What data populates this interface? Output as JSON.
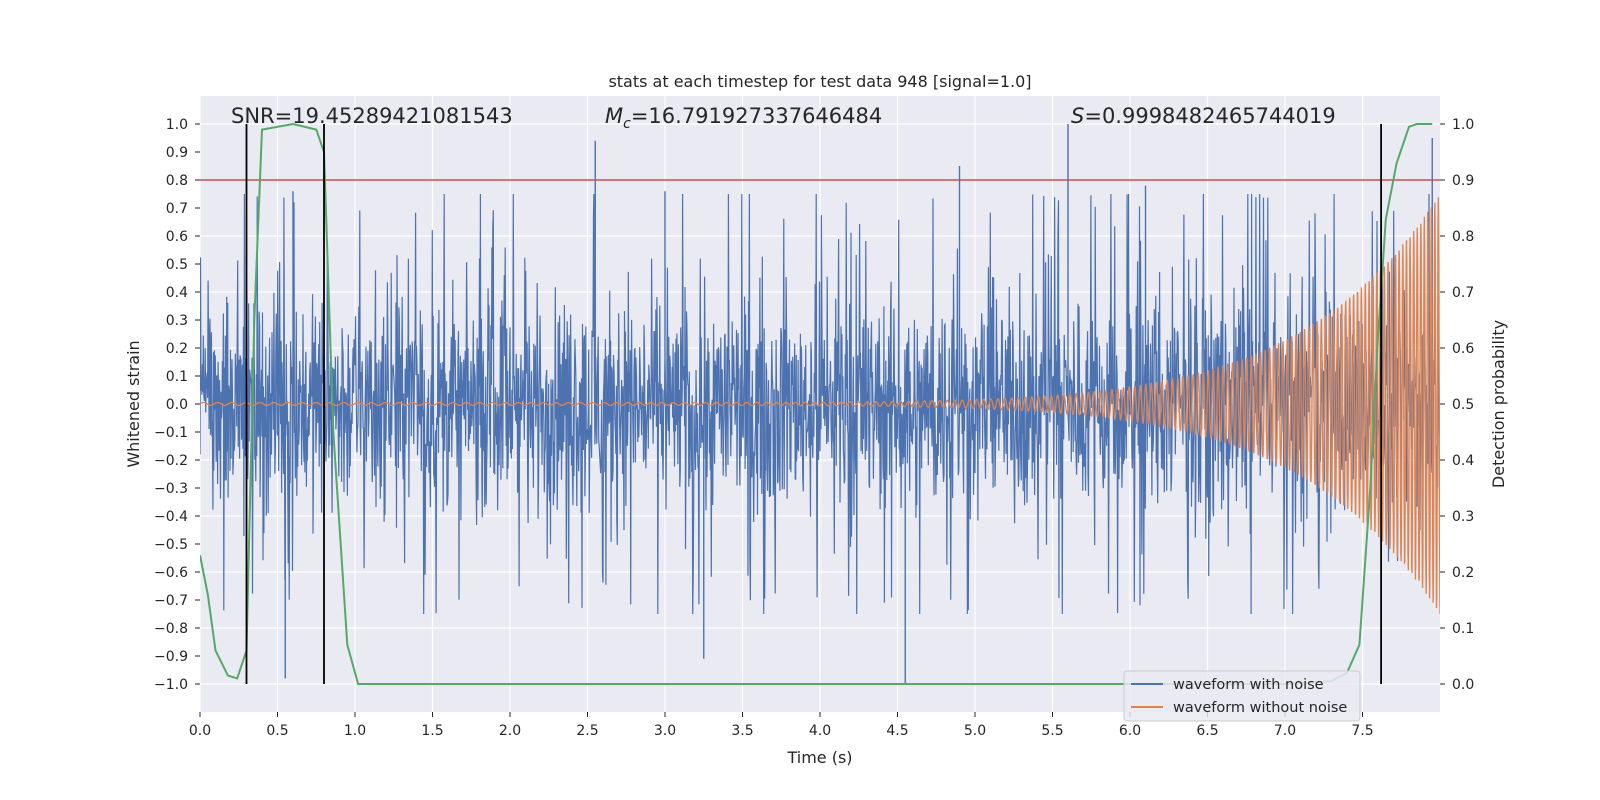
{
  "chart_data": {
    "type": "line",
    "title": "stats at each timestep for test data 948 [signal=1.0]",
    "xlabel": "Time (s)",
    "ylabel": "Whitened strain",
    "ylabel_right": "Detection probability",
    "xlim": [
      0.0,
      8.0
    ],
    "ylim": [
      -1.1,
      1.1
    ],
    "ylim_right": [
      -0.05,
      1.05
    ],
    "x_ticks": [
      0.0,
      0.5,
      1.0,
      1.5,
      2.0,
      2.5,
      3.0,
      3.5,
      4.0,
      4.5,
      5.0,
      5.5,
      6.0,
      6.5,
      7.0,
      7.5
    ],
    "x_tick_labels": [
      "0.0",
      "0.5",
      "1.0",
      "1.5",
      "2.0",
      "2.5",
      "3.0",
      "3.5",
      "4.0",
      "4.5",
      "5.0",
      "5.5",
      "6.0",
      "6.5",
      "7.0",
      "7.5"
    ],
    "y_ticks": [
      1.0,
      0.9,
      0.8,
      0.7,
      0.6,
      0.5,
      0.4,
      0.3,
      0.2,
      0.1,
      0.0,
      -0.1,
      -0.2,
      -0.3,
      -0.4,
      -0.5,
      -0.6,
      -0.7,
      -0.8,
      -0.9,
      -1.0
    ],
    "y_tick_labels": [
      "1.0",
      "0.9",
      "0.8",
      "0.7",
      "0.6",
      "0.5",
      "0.4",
      "0.3",
      "0.2",
      "0.1",
      "0.0",
      "−0.1",
      "−0.2",
      "−0.3",
      "−0.4",
      "−0.5",
      "−0.6",
      "−0.7",
      "−0.8",
      "−0.9",
      "−1.0"
    ],
    "y_right_ticks": [
      1.0,
      0.9,
      0.8,
      0.7,
      0.6,
      0.5,
      0.4,
      0.3,
      0.2,
      0.1,
      0.0
    ],
    "y_right_tick_labels": [
      "1.0",
      "0.9",
      "0.8",
      "0.7",
      "0.6",
      "0.5",
      "0.4",
      "0.3",
      "0.2",
      "0.1",
      "0.0"
    ],
    "annotations": {
      "snr": "SNR=19.45289421081543",
      "mc_symbol": "M",
      "mc_subscript": "c",
      "mc_value": "=16.791927337646484",
      "s_symbol": "S",
      "s_value": "=0.9998482465744019"
    },
    "threshold": {
      "value": 0.9,
      "axis": "right",
      "color": "#c44e52"
    },
    "vertical_lines_x": [
      0.3,
      0.8,
      7.62
    ],
    "noise_envelope": {
      "name": "waveform with noise",
      "color": "#4c72b0",
      "approx_range": [
        -0.75,
        0.75
      ],
      "spikes": [
        [
          0.55,
          -0.98
        ],
        [
          2.55,
          0.94
        ],
        [
          4.55,
          -1.0
        ],
        [
          5.6,
          1.0
        ],
        [
          7.95,
          0.95
        ],
        [
          3.25,
          -0.91
        ],
        [
          4.9,
          0.85
        ],
        [
          0.6,
          0.76
        ],
        [
          3.0,
          0.76
        ],
        [
          6.1,
          0.78
        ]
      ]
    },
    "series": [
      {
        "name": "waveform with noise",
        "color": "#4c72b0",
        "axis": "left"
      },
      {
        "name": "waveform without noise",
        "color": "#dd8452",
        "axis": "left",
        "chirp": {
          "start_amplitude": 0.005,
          "end_amplitude": 0.75,
          "start_freq_hz": 11,
          "end_freq_hz": 45
        }
      },
      {
        "name": "detection probability",
        "color": "#55a868",
        "axis": "right",
        "x": [
          0.0,
          0.05,
          0.1,
          0.18,
          0.24,
          0.3,
          0.35,
          0.4,
          0.6,
          0.75,
          0.8,
          0.86,
          0.95,
          1.02,
          1.2,
          4.0,
          7.0,
          7.3,
          7.4,
          7.48,
          7.55,
          7.6,
          7.65,
          7.72,
          7.8,
          7.85,
          7.95
        ],
        "y": [
          0.23,
          0.16,
          0.06,
          0.015,
          0.01,
          0.06,
          0.65,
          0.99,
          1.0,
          0.99,
          0.95,
          0.45,
          0.07,
          0.0,
          0.0,
          0.0,
          0.0,
          0.005,
          0.02,
          0.07,
          0.35,
          0.62,
          0.83,
          0.93,
          0.995,
          1.0,
          1.0
        ]
      }
    ],
    "legend": {
      "location": "lower-right",
      "entries": [
        {
          "label": "waveform with noise",
          "color": "#4c72b0"
        },
        {
          "label": "waveform without noise",
          "color": "#dd8452"
        }
      ]
    },
    "style": {
      "plot_background": "#eaeaf2",
      "grid_color": "#ffffff"
    }
  }
}
